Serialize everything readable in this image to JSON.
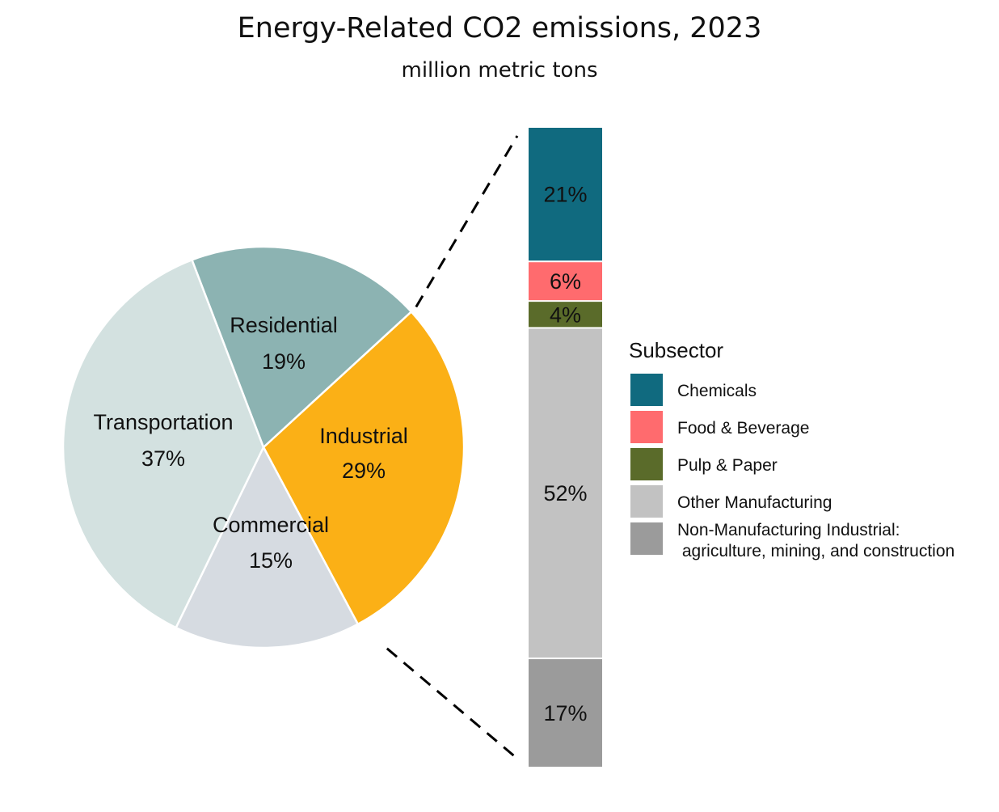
{
  "chart_data": [
    {
      "type": "pie",
      "title": "Energy-Related CO2 emissions, 2023",
      "subtitle": "million metric tons",
      "categories": [
        "Industrial",
        "Commercial",
        "Transportation",
        "Residential"
      ],
      "values": [
        29,
        15,
        37,
        19
      ],
      "value_labels": [
        "29%",
        "15%",
        "37%",
        "19%"
      ],
      "colors": [
        "#FBB016",
        "#D6DBE1",
        "#D3E1E0",
        "#8CB3B2"
      ]
    },
    {
      "type": "bar",
      "stacked": true,
      "detail_of": "Industrial",
      "legend_title": "Subsector",
      "legend_position": "right",
      "categories": [
        "Chemicals",
        "Food & Beverage",
        "Pulp & Paper",
        "Other Manufacturing",
        "Non-Manufacturing Industrial: agriculture, mining, and construction"
      ],
      "legend_lines": [
        [
          "Chemicals"
        ],
        [
          "Food & Beverage"
        ],
        [
          "Pulp & Paper"
        ],
        [
          "Other Manufacturing"
        ],
        [
          "Non-Manufacturing Industrial:",
          " agriculture, mining, and construction"
        ]
      ],
      "values": [
        21,
        6,
        4,
        52,
        17
      ],
      "value_labels": [
        "21%",
        "6%",
        "4%",
        "52%",
        "17%"
      ],
      "colors": [
        "#106A7F",
        "#FF6B6E",
        "#5A6B2A",
        "#C2C2C2",
        "#9B9B9B"
      ]
    }
  ]
}
